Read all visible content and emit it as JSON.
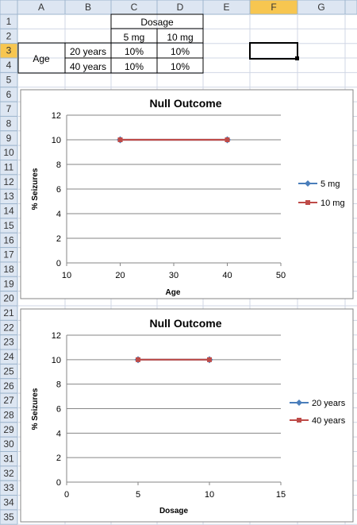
{
  "columns": [
    "A",
    "B",
    "C",
    "D",
    "E",
    "F",
    "G"
  ],
  "rows": [
    "1",
    "2",
    "3",
    "4",
    "5",
    "6",
    "7",
    "8",
    "9",
    "10",
    "11",
    "12",
    "13",
    "14",
    "15",
    "16",
    "17",
    "18",
    "19",
    "20",
    "21",
    "22",
    "23",
    "24",
    "25",
    "26",
    "27",
    "28",
    "29",
    "30",
    "31",
    "32",
    "33",
    "34",
    "35"
  ],
  "selected_cell": "F3",
  "table": {
    "dosage_header": "Dosage",
    "dose_5": "5 mg",
    "dose_10": "10 mg",
    "age_label": "Age",
    "age_20": "20 years",
    "age_40": "40 years",
    "c3": "10%",
    "d3": "10%",
    "c4": "10%",
    "d4": "10%"
  },
  "colors": {
    "series_blue": "#4a7ebb",
    "series_red": "#be4b48",
    "selection_header": "#f7c650"
  },
  "chart_data": [
    {
      "type": "line",
      "title": "Null Outcome",
      "xlabel": "Age",
      "ylabel": "% Seizures",
      "xlim": [
        10,
        50
      ],
      "ylim": [
        0,
        12
      ],
      "xticks": [
        10,
        20,
        30,
        40,
        50
      ],
      "yticks": [
        0,
        2,
        4,
        6,
        8,
        10,
        12
      ],
      "grid": "horizontal",
      "legend": "right",
      "series": [
        {
          "name": "5 mg",
          "x": [
            20,
            40
          ],
          "y": [
            10,
            10
          ],
          "marker": "diamond",
          "color": "#4a7ebb"
        },
        {
          "name": "10 mg",
          "x": [
            20,
            40
          ],
          "y": [
            10,
            10
          ],
          "marker": "square",
          "color": "#be4b48"
        }
      ]
    },
    {
      "type": "line",
      "title": "Null Outcome",
      "xlabel": "Dosage",
      "ylabel": "% Seizures",
      "xlim": [
        0,
        15
      ],
      "ylim": [
        0,
        12
      ],
      "xticks": [
        0,
        5,
        10,
        15
      ],
      "yticks": [
        0,
        2,
        4,
        6,
        8,
        10,
        12
      ],
      "grid": "horizontal",
      "legend": "right",
      "series": [
        {
          "name": "20 years",
          "x": [
            5,
            10
          ],
          "y": [
            10,
            10
          ],
          "marker": "diamond",
          "color": "#4a7ebb"
        },
        {
          "name": "40 years",
          "x": [
            5,
            10
          ],
          "y": [
            10,
            10
          ],
          "marker": "square",
          "color": "#be4b48"
        }
      ]
    }
  ]
}
